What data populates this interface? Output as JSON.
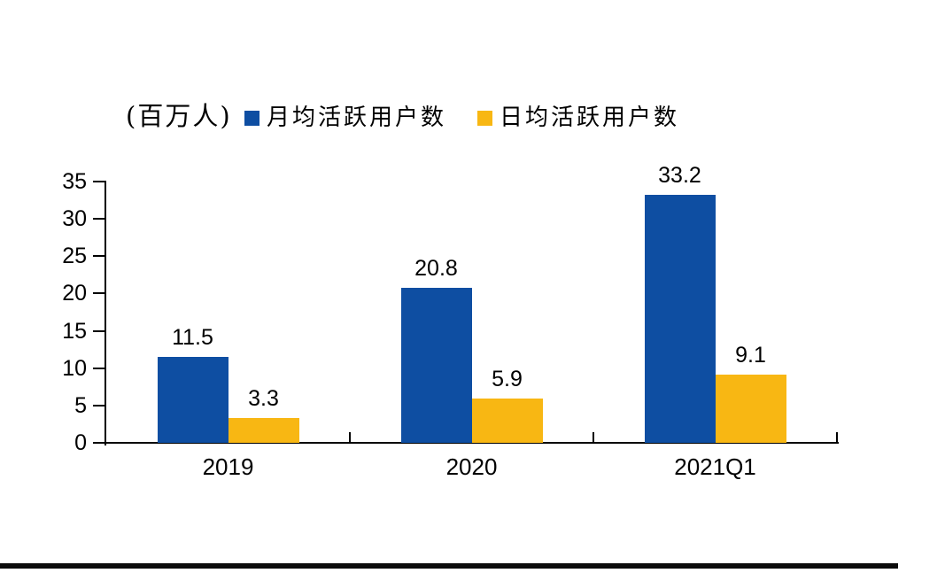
{
  "unit_label": "(百万人)",
  "legend": [
    {
      "label": "月均活跃用户数",
      "color": "#0E4EA2"
    },
    {
      "label": "日均活跃用户数",
      "color": "#F8B713"
    }
  ],
  "chart_data": {
    "type": "bar",
    "title": "",
    "unit": "(百万人)",
    "categories": [
      "2019",
      "2020",
      "2021Q1"
    ],
    "series": [
      {
        "name": "月均活跃用户数",
        "color": "#0E4EA2",
        "values": [
          11.5,
          20.8,
          33.2
        ]
      },
      {
        "name": "日均活跃用户数",
        "color": "#F8B713",
        "values": [
          3.3,
          5.9,
          9.1
        ]
      }
    ],
    "data_labels": [
      "11.5",
      "20.8",
      "33.2",
      "3.3",
      "5.9",
      "9.1"
    ],
    "ylim": [
      0,
      35
    ],
    "ytick_step": 5,
    "yticks": [
      0,
      5,
      10,
      15,
      20,
      25,
      30,
      35
    ],
    "grid": false,
    "legend_position": "top",
    "axis_color": "#000000",
    "text_color": "#000000"
  }
}
